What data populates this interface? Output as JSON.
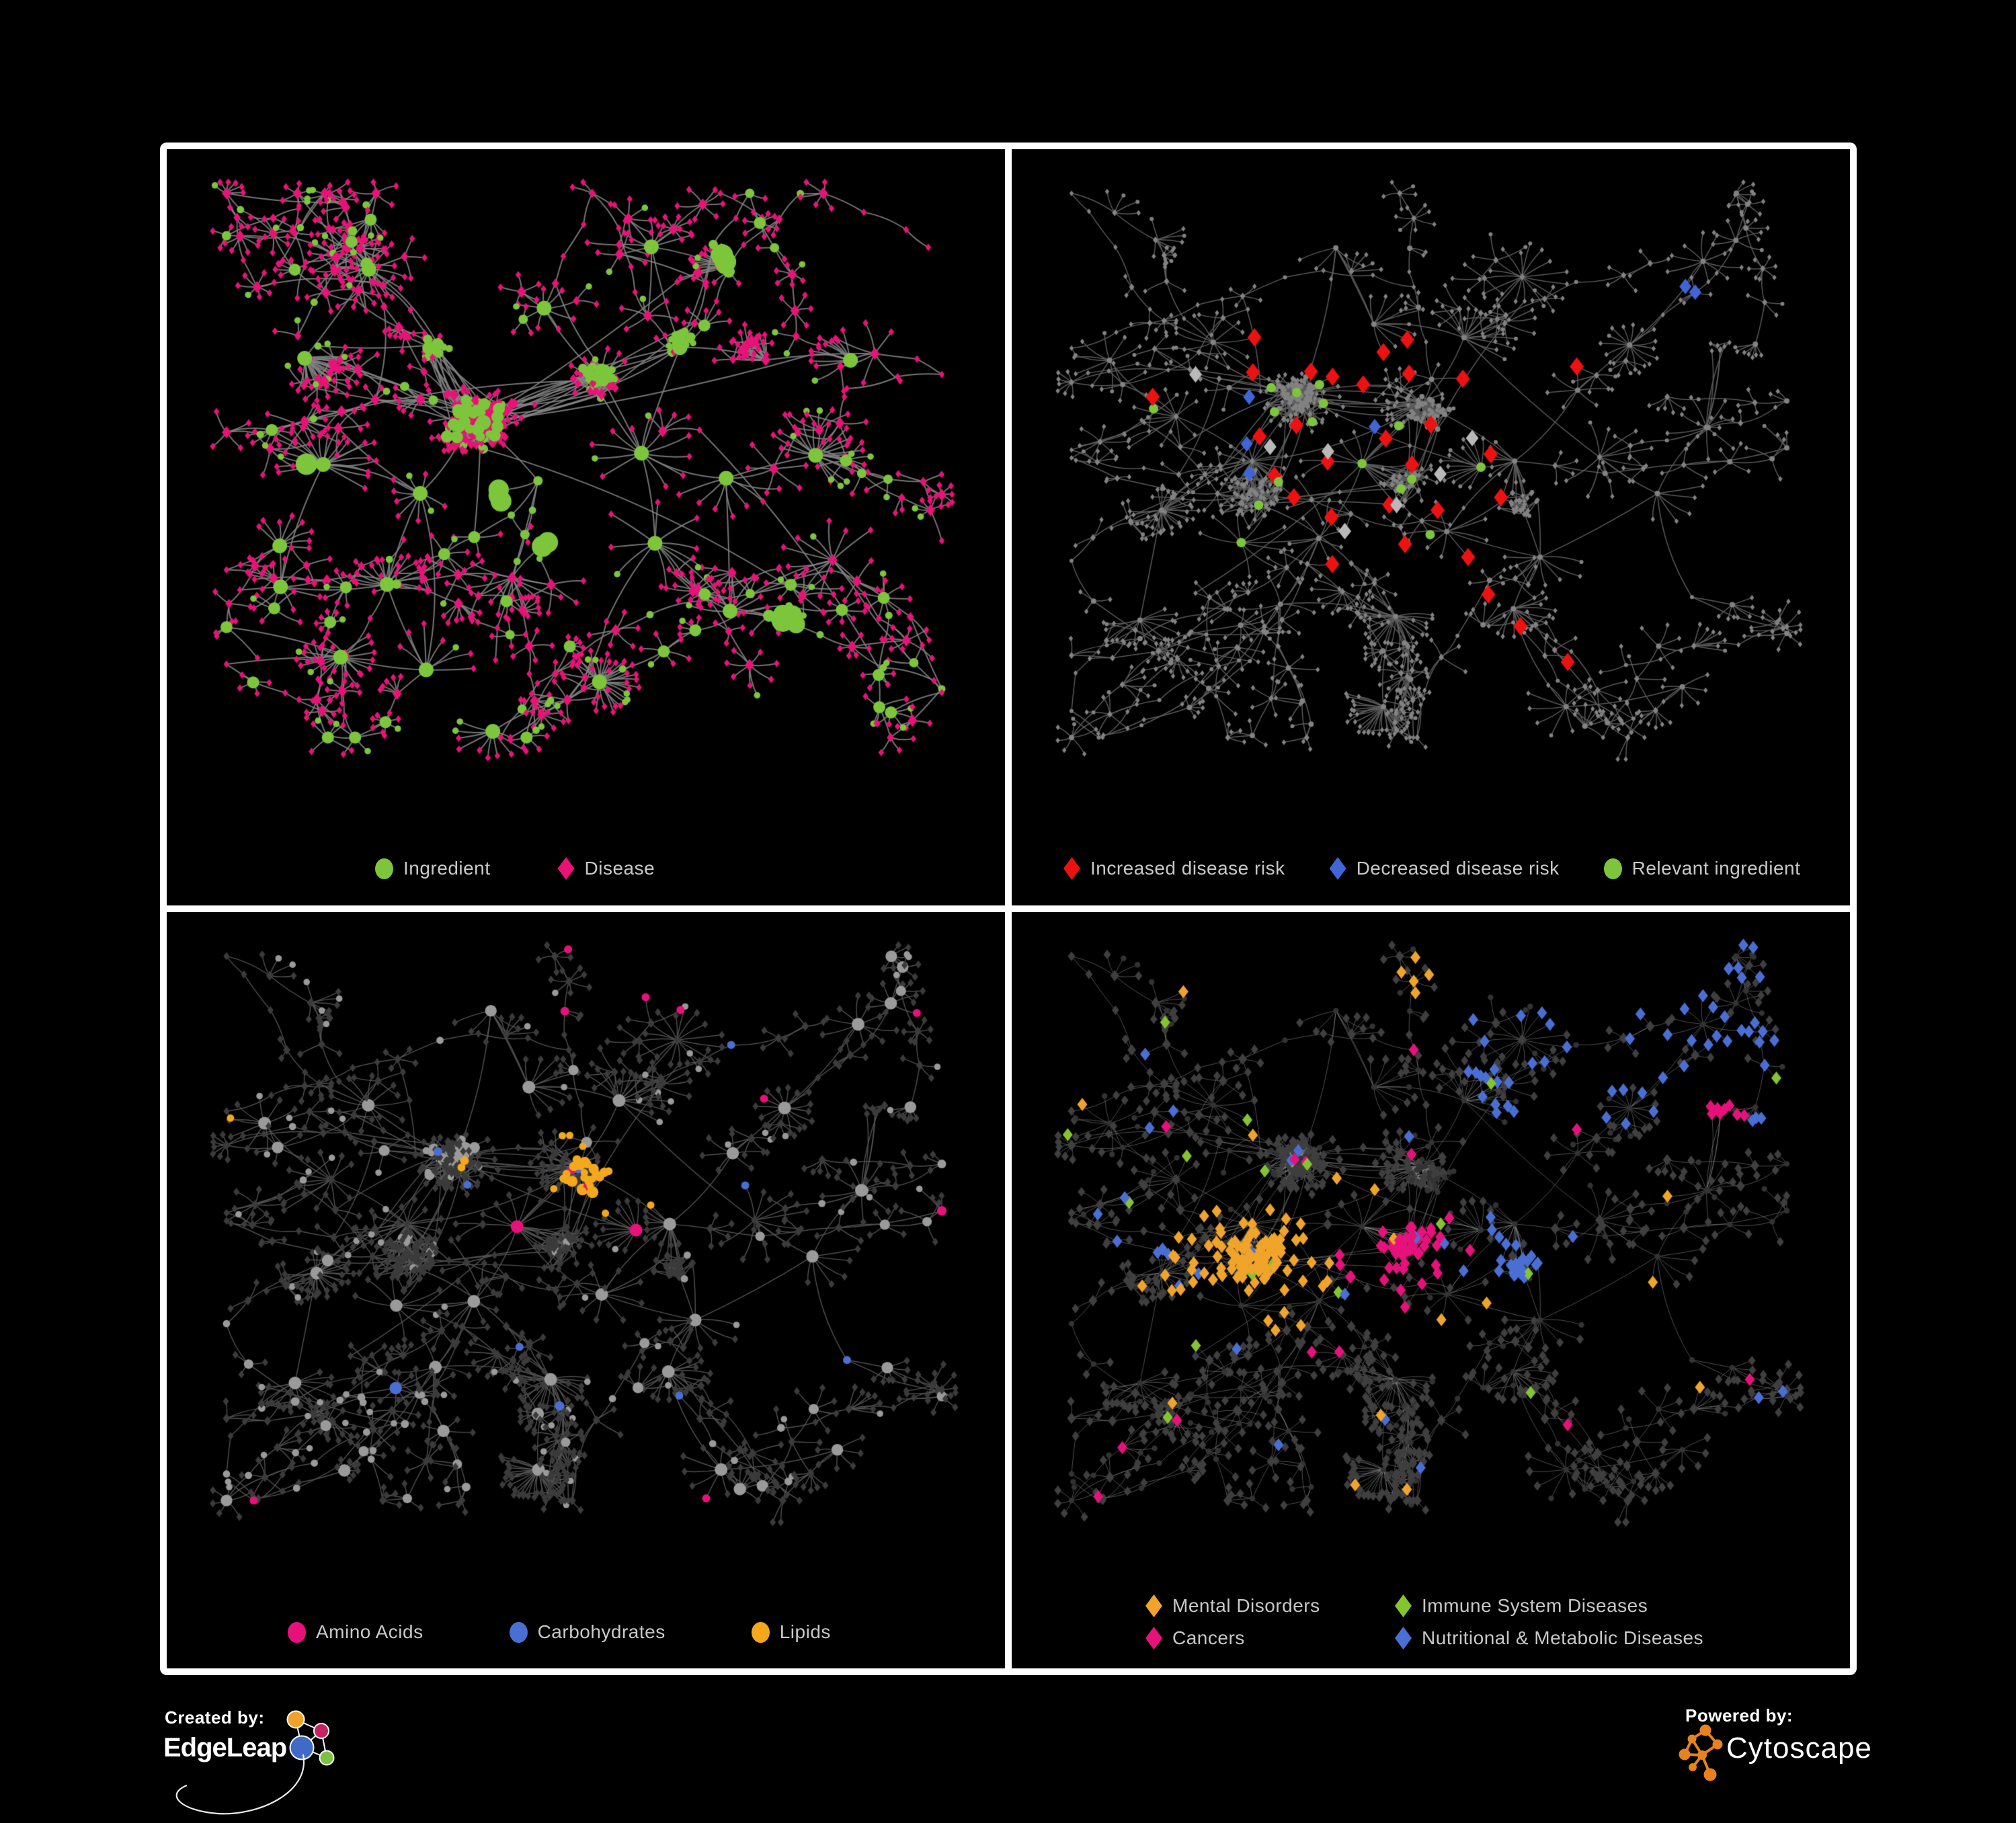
{
  "page": {
    "background": "#000000",
    "frame_color": "#ffffff"
  },
  "panels": [
    {
      "name": "ingredient-disease-network",
      "legend_items": [
        {
          "shape": "circle",
          "color": "#7dc63c",
          "label": "Ingredient"
        },
        {
          "shape": "diamond",
          "color": "#ea1178",
          "label": "Disease"
        }
      ],
      "style": {
        "edge_color": "#848484",
        "edge_width": 2.0,
        "ingredient_color": "#7dc63c",
        "disease_color": "#ea1178"
      }
    },
    {
      "name": "disease-risk-network",
      "legend_items": [
        {
          "shape": "diamond",
          "color": "#ee1111",
          "label": "Increased disease risk"
        },
        {
          "shape": "diamond",
          "color": "#3f65d9",
          "label": "Decreased disease risk"
        },
        {
          "shape": "circle",
          "color": "#7dc63c",
          "label": "Relevant ingredient"
        }
      ],
      "style": {
        "edge_color": "#5e5e5e",
        "edge_width": 1.5,
        "base_color": "#828282",
        "increased_color": "#ee1111",
        "decreased_color": "#3f65d9",
        "relevant_color": "#7dc63c",
        "other_color": "#b9b9b9",
        "increased_points": [
          [
            0.3,
            0.26
          ],
          [
            0.35,
            0.33
          ],
          [
            0.26,
            0.4
          ],
          [
            0.33,
            0.4
          ],
          [
            0.37,
            0.3
          ],
          [
            0.42,
            0.35
          ],
          [
            0.45,
            0.42
          ],
          [
            0.4,
            0.47
          ],
          [
            0.3,
            0.48
          ],
          [
            0.33,
            0.52
          ],
          [
            0.38,
            0.55
          ],
          [
            0.44,
            0.52
          ],
          [
            0.48,
            0.47
          ],
          [
            0.52,
            0.42
          ],
          [
            0.47,
            0.32
          ],
          [
            0.55,
            0.35
          ],
          [
            0.58,
            0.45
          ],
          [
            0.52,
            0.55
          ],
          [
            0.45,
            0.6
          ],
          [
            0.38,
            0.62
          ],
          [
            0.55,
            0.6
          ],
          [
            0.6,
            0.52
          ],
          [
            0.48,
            0.27
          ],
          [
            0.25,
            0.33
          ],
          [
            0.62,
            0.73
          ],
          [
            0.67,
            0.8
          ],
          [
            0.57,
            0.68
          ],
          [
            0.14,
            0.35
          ],
          [
            0.7,
            0.3
          ],
          [
            0.41,
            0.3
          ]
        ],
        "decreased_points": [
          [
            0.245,
            0.35
          ],
          [
            0.27,
            0.42
          ],
          [
            0.255,
            0.475
          ],
          [
            0.82,
            0.175
          ],
          [
            0.85,
            0.18
          ],
          [
            0.43,
            0.4
          ]
        ],
        "other_points": [
          [
            0.19,
            0.325
          ],
          [
            0.36,
            0.46
          ],
          [
            0.45,
            0.53
          ],
          [
            0.52,
            0.48
          ],
          [
            0.4,
            0.57
          ],
          [
            0.3,
            0.445
          ],
          [
            0.56,
            0.41
          ]
        ],
        "relevant_points": [
          [
            0.28,
            0.3
          ],
          [
            0.33,
            0.35
          ],
          [
            0.3,
            0.38
          ],
          [
            0.36,
            0.38
          ],
          [
            0.4,
            0.42
          ],
          [
            0.35,
            0.47
          ],
          [
            0.43,
            0.47
          ],
          [
            0.47,
            0.44
          ],
          [
            0.31,
            0.44
          ],
          [
            0.26,
            0.52
          ],
          [
            0.45,
            0.56
          ],
          [
            0.5,
            0.5
          ],
          [
            0.55,
            0.47
          ],
          [
            0.12,
            0.37
          ],
          [
            0.22,
            0.62
          ],
          [
            0.4,
            0.3
          ]
        ]
      }
    },
    {
      "name": "ingredient-classes-network",
      "legend_items": [
        {
          "shape": "circle",
          "color": "#e8117c",
          "label": "Amino Acids"
        },
        {
          "shape": "circle",
          "color": "#4a6fd4",
          "label": "Carbohydrates"
        },
        {
          "shape": "circle",
          "color": "#f5a81c",
          "label": "Lipids"
        }
      ],
      "style": {
        "edge_color": "#565656",
        "edge_width": 1.45,
        "node_color": "#9a9a9a",
        "muted_color": "#3b3b3b",
        "amino_color": "#e8117c",
        "carb_color": "#4a6fd4",
        "lipid_color": "#f5a81c",
        "lipid_center": [
          0.49,
          0.38
        ],
        "amino_rate": 0.055,
        "carb_rate": 0.024,
        "lipid_rate": 0.028
      }
    },
    {
      "name": "disease-classes-network",
      "two_column": true,
      "legend_items": [
        {
          "shape": "diamond",
          "color": "#f0a42a",
          "label": "Mental Disorders"
        },
        {
          "shape": "diamond",
          "color": "#84c42e",
          "label": "Immune System Diseases"
        },
        {
          "shape": "diamond",
          "color": "#e8117c",
          "label": "Cancers"
        },
        {
          "shape": "diamond",
          "color": "#4a6fd4",
          "label": "Nutritional & Metabolic Diseases"
        }
      ],
      "style": {
        "edge_color": "#8f8f8f",
        "edge_width": 1.0,
        "node_color": "#3f3f3f",
        "ingredient_color": "#333333",
        "mental_color": "#f0a42a",
        "immune_color": "#84c42e",
        "cancer_color": "#e8117c",
        "metabolic_color": "#4a6fd4",
        "mental_center": [
          0.27,
          0.52
        ],
        "cancer_center": [
          0.47,
          0.5
        ],
        "metabolic_center": [
          0.62,
          0.53
        ],
        "cancer_center2": [
          0.88,
          0.28
        ]
      }
    }
  ],
  "footer": {
    "created_by": "Created by:",
    "edgeleap": "EdgeLeap",
    "powered_by": "Powered by:",
    "cytoscape": "Cytoscape",
    "cytoscape_color": "#e8821e",
    "edgeleap_palette": [
      "#f0a32a",
      "#c72363",
      "#4169c8",
      "#7dc242"
    ]
  },
  "network_params": {
    "seed_main": 7,
    "seed_shared": 13
  }
}
